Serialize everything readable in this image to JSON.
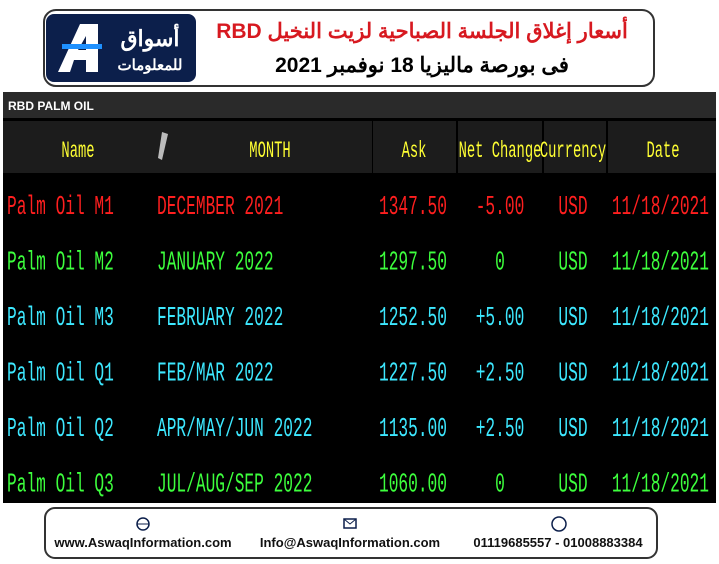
{
  "header": {
    "logo_line1": "أسواق",
    "logo_line2": "للمعلومات",
    "title_line1": "أسعار  إغلاق الجلسة الصباحية لزيت النخيل RBD",
    "title_line2": "فى بورصة ماليزيا 18 نوفمبر 2021"
  },
  "table": {
    "label": "RBD PALM OIL",
    "columns": [
      "Name",
      "MONTH",
      "Ask",
      "Net Change",
      "Currency",
      "Date"
    ],
    "rows": [
      {
        "color": "#ff1f1f",
        "cells": [
          "Palm Oil M1",
          "DECEMBER 2021",
          "1347.50",
          "-5.00",
          "USD",
          "11/18/2021"
        ]
      },
      {
        "color": "#3dff3d",
        "cells": [
          "Palm Oil M2",
          "JANUARY 2022",
          "1297.50",
          "0",
          "USD",
          "11/18/2021"
        ]
      },
      {
        "color": "#3de8ff",
        "cells": [
          "Palm Oil M3",
          "FEBRUARY 2022",
          "1252.50",
          "+5.00",
          "USD",
          "11/18/2021"
        ]
      },
      {
        "color": "#3de8ff",
        "cells": [
          "Palm Oil Q1",
          "FEB/MAR 2022",
          "1227.50",
          "+2.50",
          "USD",
          "11/18/2021"
        ]
      },
      {
        "color": "#3de8ff",
        "cells": [
          "Palm Oil Q2",
          "APR/MAY/JUN 2022",
          "1135.00",
          "+2.50",
          "USD",
          "11/18/2021"
        ]
      },
      {
        "color": "#3dff3d",
        "cells": [
          "Palm Oil Q3",
          "JUL/AUG/SEP 2022",
          "1060.00",
          "0",
          "USD",
          "11/18/2021"
        ]
      }
    ]
  },
  "footer": {
    "website": "www.AswaqInformation.com",
    "email": "Info@AswaqInformation.com",
    "phone": "01119685557 - 01008883384"
  }
}
